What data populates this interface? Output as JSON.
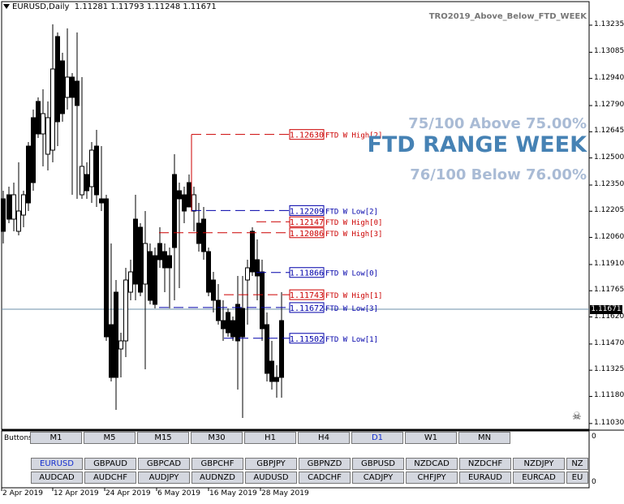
{
  "header": {
    "symbol": "EURUSD,Daily",
    "ohlc": "1.11281 1.11793 1.11248 1.11671"
  },
  "indicator": {
    "name": "TRO2019_Above_Below_FTD_WEEK",
    "above": "75/100 Above 75.00%",
    "title": "FTD RANGE WEEK",
    "below": "76/100 Below 76.00%"
  },
  "colors": {
    "high": "#cc0000",
    "low": "#0000aa",
    "bull": "#000000",
    "bear": "#000000",
    "current": "#6e8fa8",
    "accent": "#4682b4"
  },
  "price_axis": {
    "labels": [
      "1.13235",
      "1.13085",
      "1.12940",
      "1.12790",
      "1.12645",
      "1.12500",
      "1.12350",
      "1.12205",
      "1.12060",
      "1.11910",
      "1.11765",
      "1.11620",
      "1.11470",
      "1.11325",
      "1.11180",
      "1.11030"
    ],
    "current": "1.11671"
  },
  "levels": [
    {
      "price": "1.12630",
      "label": "FTD W High[2]",
      "kind": "high"
    },
    {
      "price": "1.12209",
      "label": "FTD W Low[2]",
      "kind": "low"
    },
    {
      "price": "1.12147",
      "label": "FTD W High[0]",
      "kind": "high"
    },
    {
      "price": "1.12086",
      "label": "FTD W High[3]",
      "kind": "high"
    },
    {
      "price": "1.11866",
      "label": "FTD W Low[0]",
      "kind": "low"
    },
    {
      "price": "1.11743",
      "label": "FTD W High[1]",
      "kind": "high"
    },
    {
      "price": "1.11672",
      "label": "FTD W Low[3]",
      "kind": "low"
    },
    {
      "price": "1.11502",
      "label": "FTD W Low[1]",
      "kind": "low"
    }
  ],
  "date_axis": {
    "labels": [
      "2 Apr 2019",
      "12 Apr 2019",
      "24 Apr 2019",
      "6 May 2019",
      "16 May 2019",
      "28 May 2019"
    ]
  },
  "buttons": {
    "label": "Buttons",
    "timeframes": [
      "M1",
      "M5",
      "M15",
      "M30",
      "H1",
      "H4",
      "D1",
      "W1",
      "MN"
    ],
    "active_timeframe": "D1",
    "symbols_row1": [
      "EURUSD",
      "GBPAUD",
      "GBPCAD",
      "GBPCHF",
      "GBPJPY",
      "GBPNZD",
      "GBPUSD",
      "NZDCAD",
      "NZDCHF",
      "NZDJPY",
      "NZ"
    ],
    "symbols_row2": [
      "AUDCAD",
      "AUDCHF",
      "AUDJPY",
      "AUDNZD",
      "AUDUSD",
      "CADCHF",
      "CADJPY",
      "CHFJPY",
      "EURAUD",
      "EURCAD",
      "EU"
    ],
    "active_symbol": "EURUSD",
    "subwindow_max": "0",
    "subwindow_min": "0"
  }
}
